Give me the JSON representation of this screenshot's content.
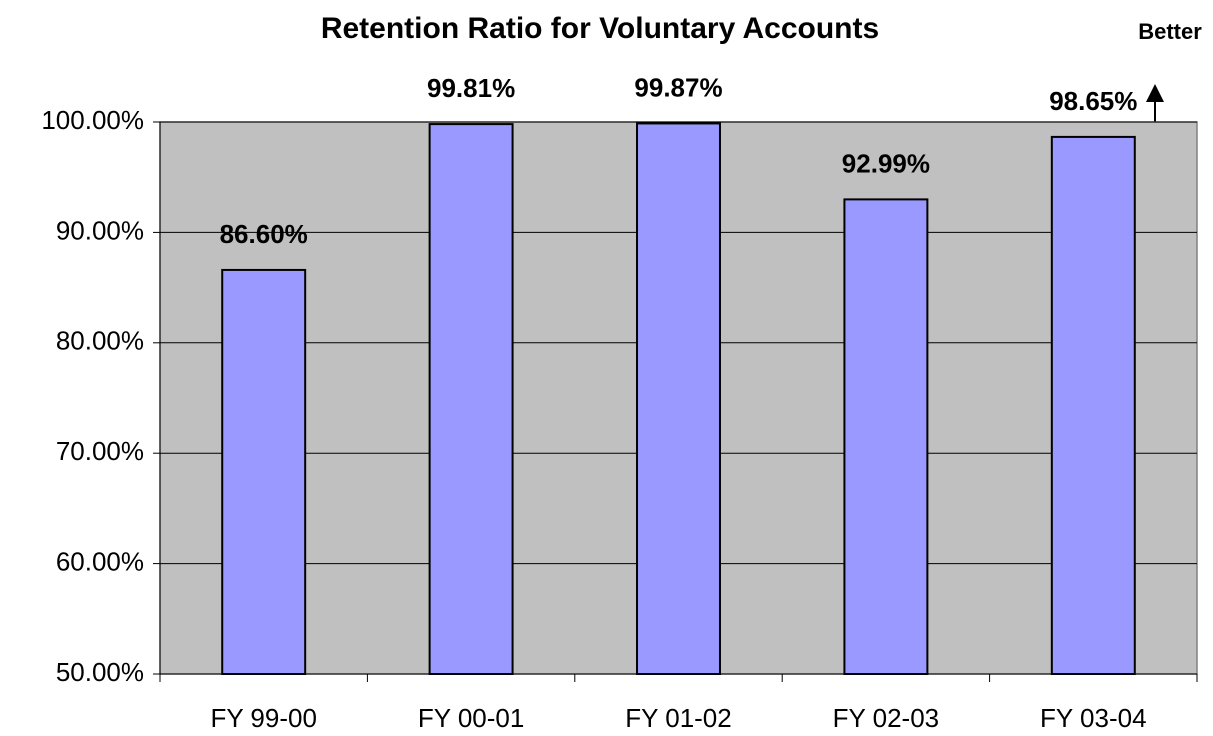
{
  "chart_data": {
    "type": "bar",
    "title": "Retention Ratio for Voluntary Accounts",
    "annotation": "Better",
    "categories": [
      "FY 99-00",
      "FY 00-01",
      "FY 01-02",
      "FY 02-03",
      "FY 03-04"
    ],
    "values": [
      86.6,
      99.81,
      99.87,
      92.99,
      98.65
    ],
    "value_labels": [
      "86.60%",
      "99.81%",
      "99.87%",
      "92.99%",
      "98.65%"
    ],
    "color": "#9999ff",
    "plot_background": "#c0c0c0",
    "ylim": [
      50,
      100
    ],
    "yticks": [
      {
        "value": 50,
        "label": "50.00%"
      },
      {
        "value": 60,
        "label": "60.00%"
      },
      {
        "value": 70,
        "label": "70.00%"
      },
      {
        "value": 80,
        "label": "80.00%"
      },
      {
        "value": 90,
        "label": "90.00%"
      },
      {
        "value": 100,
        "label": "100.00%"
      }
    ],
    "grid": true
  }
}
